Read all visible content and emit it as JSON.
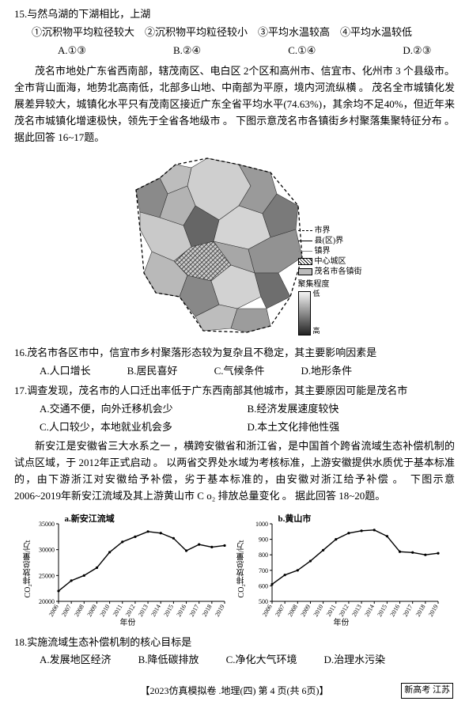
{
  "q15": {
    "stem": "15.与然乌湖的下湖相比，上湖",
    "subs": "①沉积物平均粒径较大　②沉积物平均粒径较小　③平均水温较高　④平均水温较低",
    "opts": [
      "A.①③",
      "B.②④",
      "C.①④",
      "D.②③"
    ]
  },
  "passage1": "茂名市地处广东省西南部，辖茂南区、电白区 2个区和高州市、信宜市、化州市 3 个县级市。全市背山面海，地势北高南低，北部多山地、中南部为平原，境内河流纵横 。 茂名全市城镇化发展差异较大，城镇化水平只有茂南区接近广东全省平均水平(74.63%)，其余均不足40%，但近年来茂名市城镇化增速极快，领先于全省各地级市 。 下图示意茂名市各镇街乡村聚落集聚特征分布 。 据此回答 16~17题。",
  "legend": {
    "items": [
      "市界",
      "县(区)界",
      "镇界",
      "中心城区",
      "茂名市各镇街"
    ],
    "scale_title": "聚集程度",
    "scale_low": "低",
    "scale_high": "高"
  },
  "q16": {
    "stem": "16.茂名市各区市中，信宜市乡村聚落形态较为复杂且不稳定，其主要影响因素是",
    "opts": [
      "A.人口增长",
      "B.居民喜好",
      "C.气候条件",
      "D.地形条件"
    ]
  },
  "q17": {
    "stem": "17.调查发现，茂名市的人口迁出率低于广东西南部其他城市，其主要原因可能是茂名市",
    "opts": [
      "A.交通不便，向外迁移机会少",
      "B.经济发展速度较快",
      "C.人口较少，本地就业机会多",
      "D.本土文化排他性强"
    ]
  },
  "passage2": "新安江是安徽省三大水系之一 ，横跨安徽省和浙江省，是中国首个跨省流域生态补偿机制的试点区域，于 2012年正式启动 。 以两省交界处水域为考核标准，上游安徽提供水质优于基本标准的，由下游浙江对安徽给予补偿，劣于基本标准的，由安徽对浙江给予补偿 。　下图示意2006~2019年新安江流域及其上游黄山市 C o₂ 排放总量变化 。 据此回答 18~20题。",
  "chart_a": {
    "title": "a.新安江流域",
    "ylabel": "CO₂排放总量/万t",
    "xlabel": "年份",
    "ymin": 20000,
    "ymax": 35000,
    "ystep": 5000,
    "years": [
      2006,
      2007,
      2008,
      2009,
      2010,
      2011,
      2012,
      2013,
      2014,
      2015,
      2016,
      2017,
      2018,
      2019
    ],
    "values": [
      22000,
      24000,
      25000,
      26500,
      29500,
      31500,
      32500,
      33500,
      33200,
      32200,
      29800,
      31000,
      30500,
      30800
    ],
    "line_color": "#000000",
    "background": "#ffffff"
  },
  "chart_b": {
    "title": "b.黄山市",
    "ylabel": "CO₂排放总量/万t",
    "xlabel": "年份",
    "ymin": 500,
    "ymax": 1000,
    "ystep": 100,
    "years": [
      2006,
      2007,
      2008,
      2009,
      2010,
      2011,
      2012,
      2013,
      2014,
      2015,
      2016,
      2017,
      2018,
      2019
    ],
    "values": [
      610,
      670,
      700,
      760,
      830,
      900,
      940,
      955,
      960,
      920,
      820,
      815,
      800,
      810
    ],
    "line_color": "#000000",
    "background": "#ffffff"
  },
  "q18": {
    "stem": "18.实施流域生态补偿机制的核心目标是",
    "opts": [
      "A.发展地区经济",
      "B.降低碳排放",
      "C.净化大气环境",
      "D.治理水污染"
    ]
  },
  "footer": "【2023仿真模拟卷 .地理(四) 第 4 页(共 6页)】",
  "footer_tag": "新高考 江苏"
}
